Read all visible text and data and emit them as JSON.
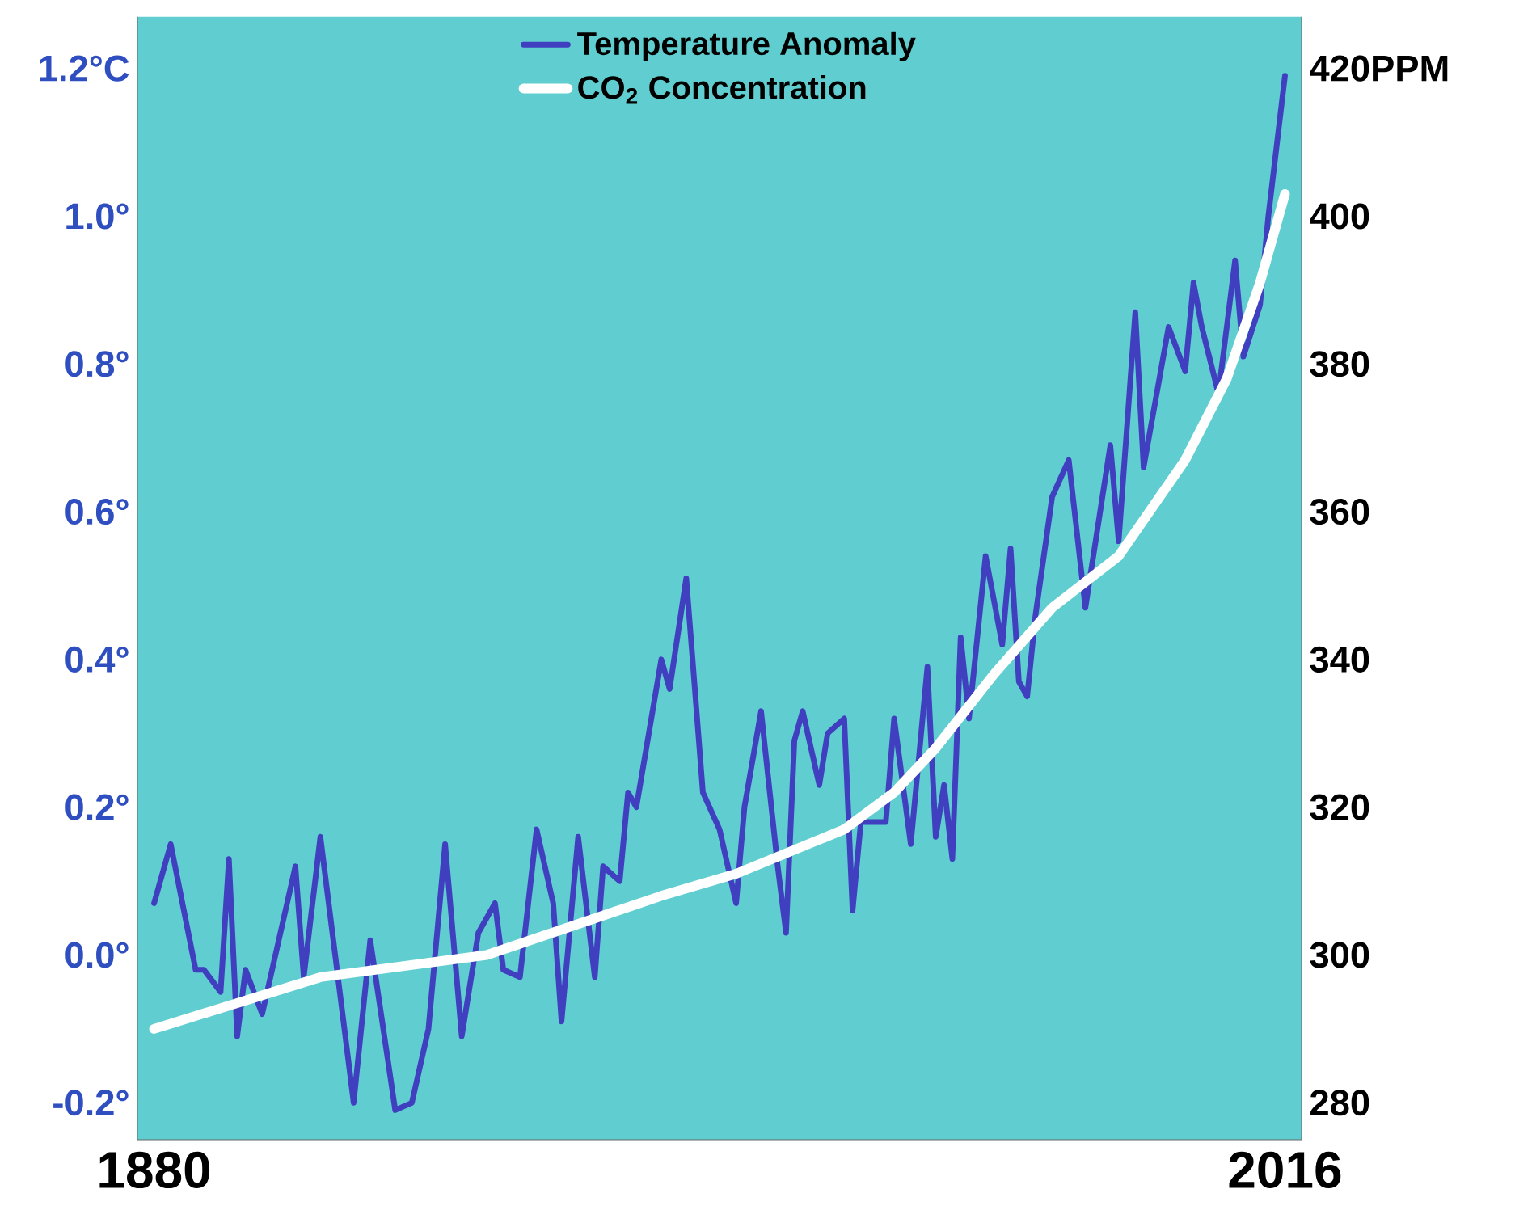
{
  "chart_data": {
    "type": "line",
    "series": [
      {
        "name": "Temperature Anomaly",
        "color": "#3f3fc0",
        "x": [
          1880,
          1882,
          1885,
          1886,
          1888,
          1889,
          1890,
          1891,
          1893,
          1897,
          1898,
          1900,
          1904,
          1906,
          1909,
          1911,
          1913,
          1915,
          1917,
          1919,
          1921,
          1922,
          1924,
          1926,
          1928,
          1929,
          1931,
          1933,
          1934,
          1936,
          1937,
          1938,
          1941,
          1942,
          1944,
          1946,
          1948,
          1950,
          1951,
          1953,
          1955,
          1956,
          1957,
          1958,
          1960,
          1961,
          1963,
          1964,
          1965,
          1968,
          1969,
          1971,
          1973,
          1974,
          1975,
          1976,
          1977,
          1978,
          1980,
          1982,
          1983,
          1984,
          1985,
          1986,
          1988,
          1990,
          1992,
          1995,
          1996,
          1998,
          1999,
          2002,
          2004,
          2005,
          2006,
          2008,
          2010,
          2011,
          2013,
          2014,
          2016
        ],
        "values": [
          0.07,
          0.15,
          -0.02,
          -0.02,
          -0.05,
          0.13,
          -0.11,
          -0.02,
          -0.08,
          0.12,
          -0.03,
          0.16,
          -0.2,
          0.02,
          -0.21,
          -0.2,
          -0.1,
          0.15,
          -0.11,
          0.03,
          0.07,
          -0.02,
          -0.03,
          0.17,
          0.07,
          -0.09,
          0.16,
          -0.03,
          0.12,
          0.1,
          0.22,
          0.2,
          0.4,
          0.36,
          0.51,
          0.22,
          0.17,
          0.07,
          0.2,
          0.33,
          0.12,
          0.03,
          0.29,
          0.33,
          0.23,
          0.3,
          0.32,
          0.06,
          0.18,
          0.18,
          0.32,
          0.15,
          0.39,
          0.16,
          0.23,
          0.13,
          0.43,
          0.32,
          0.54,
          0.42,
          0.55,
          0.37,
          0.35,
          0.46,
          0.62,
          0.67,
          0.47,
          0.69,
          0.56,
          0.87,
          0.66,
          0.85,
          0.79,
          0.91,
          0.85,
          0.76,
          0.94,
          0.81,
          0.88,
          1.0,
          1.19
        ]
      },
      {
        "name": "CO$_{2}$ Concentration",
        "color": "#ffffff",
        "axis": "y2",
        "x": [
          1880,
          1900,
          1920,
          1941,
          1950,
          1963,
          1969,
          1974,
          1981,
          1988,
          1996,
          2004,
          2009,
          2013,
          2016
        ],
        "values": [
          290,
          297,
          300,
          308,
          311,
          317,
          322,
          328,
          338,
          347,
          354,
          367,
          378,
          391,
          403
        ]
      }
    ],
    "xlim": [
      1878,
      2018
    ],
    "xticks": [
      1880,
      2016
    ],
    "ylim": [
      -0.25,
      1.27
    ],
    "yticks": [
      {
        "value": -0.2,
        "label": "-0.2°"
      },
      {
        "value": 0.0,
        "label": "0.0°"
      },
      {
        "value": 0.2,
        "label": "0.2°"
      },
      {
        "value": 0.4,
        "label": "0.4°"
      },
      {
        "value": 0.6,
        "label": "0.6°"
      },
      {
        "value": 0.8,
        "label": "0.8°"
      },
      {
        "value": 1.0,
        "label": "1.0°"
      },
      {
        "value": 1.2,
        "label": "1.2°C"
      }
    ],
    "y2lim": [
      275,
      427
    ],
    "y2ticks": [
      280,
      300,
      320,
      340,
      360,
      380,
      400,
      {
        "value": 420,
        "label": "420PPM"
      }
    ],
    "legend": "top",
    "grid": false,
    "marker": "none",
    "line_style": "solid"
  }
}
